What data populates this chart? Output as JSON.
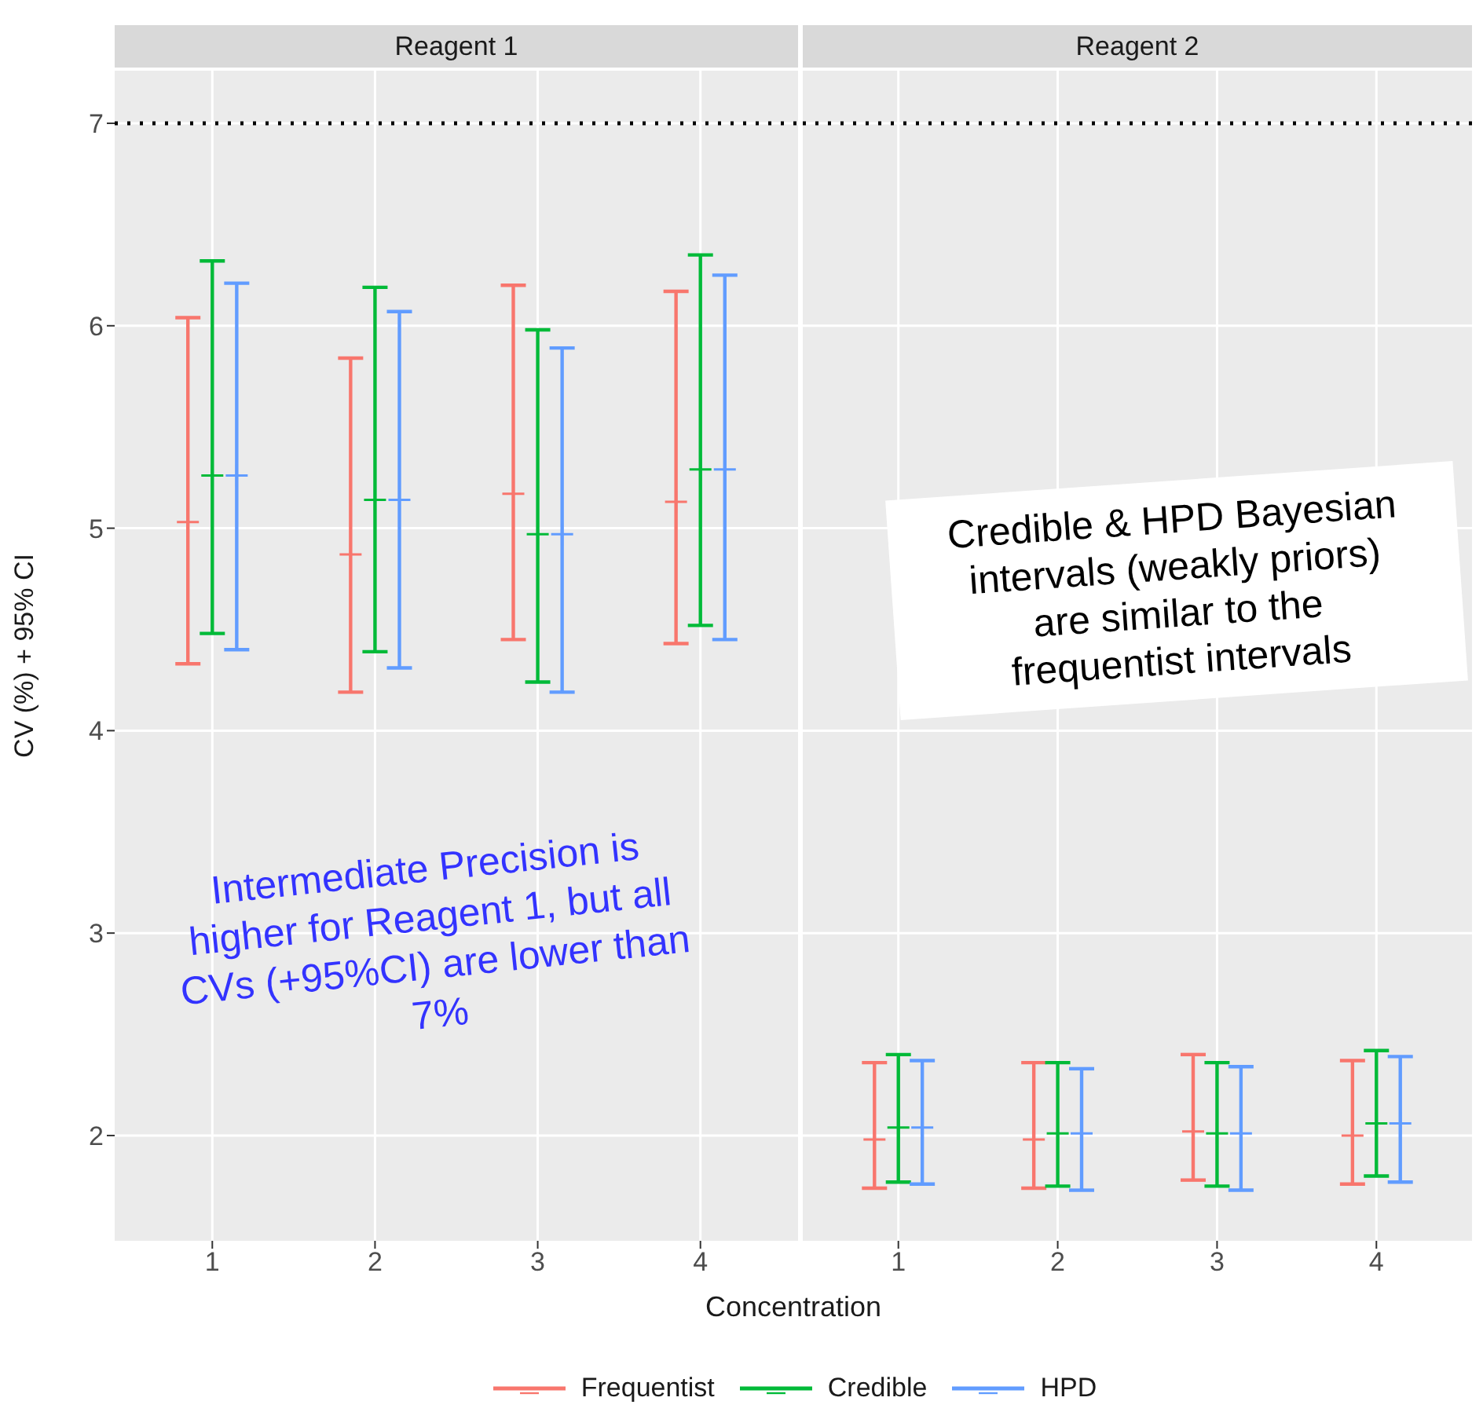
{
  "chart_data": [
    {
      "type": "scatter",
      "title": "Reagent 1",
      "xlabel": "Concentration",
      "ylabel": "CV (%) + 95% CI",
      "xlim": [
        0.4,
        4.6
      ],
      "xticks": [
        1,
        2,
        3,
        4
      ],
      "ylim": [
        1.48,
        7.26
      ],
      "yticks": [
        2,
        3,
        4,
        5,
        6,
        7
      ],
      "grid": true,
      "marker": "cross",
      "legend": "bottom",
      "ref_lines": [
        {
          "axis": "y",
          "value": 7,
          "color": "#000000",
          "line_style": "dotted"
        }
      ],
      "annotations": [
        "Intermediate Precision is higher for Reagent 1, but all CVs (+95%CI) are lower than 7%"
      ],
      "series": [
        {
          "name": "Frequentist",
          "color": "#f8766d",
          "x": [
            0.85,
            1.85,
            2.85,
            3.85
          ],
          "values": [
            5.03,
            4.87,
            5.17,
            5.13
          ],
          "errors": [
            [
              4.33,
              6.04
            ],
            [
              4.19,
              5.84
            ],
            [
              4.45,
              6.2
            ],
            [
              4.43,
              6.17
            ]
          ]
        },
        {
          "name": "Credible",
          "color": "#00ba38",
          "x": [
            1,
            2,
            3,
            4
          ],
          "values": [
            5.26,
            5.14,
            4.97,
            5.29
          ],
          "errors": [
            [
              4.48,
              6.32
            ],
            [
              4.39,
              6.19
            ],
            [
              4.24,
              5.98
            ],
            [
              4.52,
              6.35
            ]
          ]
        },
        {
          "name": "HPD",
          "color": "#619cff",
          "x": [
            1.15,
            2.15,
            3.15,
            4.15
          ],
          "values": [
            5.26,
            5.14,
            4.97,
            5.29
          ],
          "errors": [
            [
              4.4,
              6.21
            ],
            [
              4.31,
              6.07
            ],
            [
              4.19,
              5.89
            ],
            [
              4.45,
              6.25
            ]
          ]
        }
      ]
    },
    {
      "type": "scatter",
      "title": "Reagent 2",
      "xlim": [
        0.4,
        4.6
      ],
      "xticks": [
        1,
        2,
        3,
        4
      ],
      "ylim": [
        1.48,
        7.26
      ],
      "yticks": [
        2,
        3,
        4,
        5,
        6,
        7
      ],
      "tick_labels": "x",
      "grid": true,
      "marker": "cross",
      "ref_lines": [
        {
          "axis": "y",
          "value": 7,
          "color": "#000000",
          "line_style": "dotted"
        }
      ],
      "annotations": [
        "Credible & HPD Bayesian intervals (weakly priors) are similar to the frequentist intervals"
      ],
      "series": [
        {
          "color": "#f8766d",
          "x": [
            0.85,
            1.85,
            2.85,
            3.85
          ],
          "values": [
            1.98,
            1.98,
            2.02,
            2.0
          ],
          "errors": [
            [
              1.74,
              2.36
            ],
            [
              1.74,
              2.36
            ],
            [
              1.78,
              2.4
            ],
            [
              1.76,
              2.37
            ]
          ]
        },
        {
          "color": "#00ba38",
          "x": [
            1,
            2,
            3,
            4
          ],
          "values": [
            2.04,
            2.01,
            2.01,
            2.06
          ],
          "errors": [
            [
              1.77,
              2.4
            ],
            [
              1.75,
              2.36
            ],
            [
              1.75,
              2.36
            ],
            [
              1.8,
              2.42
            ]
          ]
        },
        {
          "color": "#619cff",
          "x": [
            1.15,
            2.15,
            3.15,
            4.15
          ],
          "values": [
            2.04,
            2.01,
            2.01,
            2.06
          ],
          "errors": [
            [
              1.76,
              2.37
            ],
            [
              1.73,
              2.33
            ],
            [
              1.73,
              2.34
            ],
            [
              1.77,
              2.39
            ]
          ]
        }
      ]
    }
  ]
}
